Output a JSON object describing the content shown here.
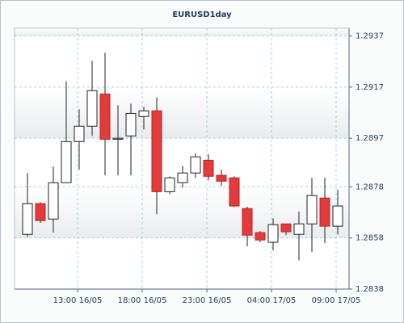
{
  "chart_data": {
    "type": "candlestick",
    "title": "EURUSD1day",
    "categories": [
      null,
      null,
      null,
      null,
      "13:00 16/05",
      null,
      null,
      null,
      null,
      "18:00 16/05",
      null,
      null,
      null,
      null,
      "23:00 16/05",
      null,
      null,
      null,
      null,
      "04:00 17/05",
      null,
      null,
      null,
      null,
      "09:00 17/05"
    ],
    "open": [
      1.28594,
      1.28714,
      1.28654,
      1.28796,
      1.28957,
      1.29017,
      1.29143,
      1.28966,
      1.28979,
      1.29055,
      1.29077,
      1.28761,
      1.28796,
      1.28834,
      1.28884,
      1.28825,
      1.28815,
      1.28695,
      1.28601,
      1.28563,
      1.28635,
      1.28594,
      1.28635,
      1.28736,
      1.28626
    ],
    "high": [
      1.28834,
      1.2872,
      1.28859,
      1.29193,
      1.29083,
      1.29272,
      1.29304,
      1.29099,
      1.29105,
      1.29093,
      1.2913,
      1.28821,
      1.28862,
      1.2891,
      1.28907,
      1.28847,
      1.28821,
      1.28702,
      1.28607,
      1.28657,
      1.28635,
      1.28683,
      1.28815,
      1.28815,
      1.28768
    ],
    "low": [
      1.28585,
      1.28639,
      1.28601,
      1.28796,
      1.28847,
      1.28979,
      1.28825,
      1.28825,
      1.28825,
      1.29004,
      1.28673,
      1.28752,
      1.28777,
      1.28815,
      1.28806,
      1.28784,
      1.28702,
      1.28547,
      1.28563,
      1.28531,
      1.28591,
      1.28493,
      1.28525,
      1.2856,
      1.28594
    ],
    "close": [
      1.28714,
      1.28648,
      1.28796,
      1.28957,
      1.29017,
      1.29156,
      1.28966,
      1.2897,
      1.29067,
      1.29077,
      1.28761,
      1.28815,
      1.28834,
      1.28897,
      1.28821,
      1.28802,
      1.28705,
      1.28591,
      1.28572,
      1.28632,
      1.28604,
      1.28635,
      1.28746,
      1.28626,
      1.28705
    ],
    "up_color": "#ffffff",
    "down_color": "#e23b3b",
    "ylim": [
      1.2838,
      1.294
    ],
    "yticks": [
      1.2937,
      1.2917,
      1.2897,
      1.2878,
      1.2858,
      1.2838
    ],
    "grid": true
  }
}
